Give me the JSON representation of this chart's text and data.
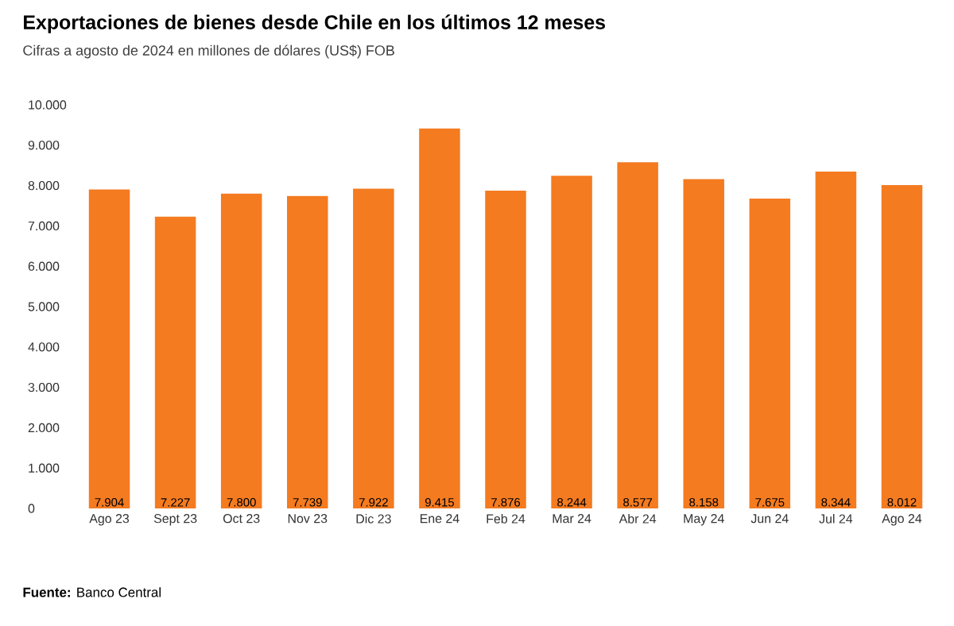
{
  "chart_data": {
    "type": "bar",
    "title": "Exportaciones de bienes desde Chile en los últimos 12 meses",
    "subtitle": "Cifras a agosto de 2024 en millones de dólares (US$) FOB",
    "categories": [
      "Ago 23",
      "Sept 23",
      "Oct 23",
      "Nov 23",
      "Dic 23",
      "Ene 24",
      "Feb 24",
      "Mar 24",
      "Abr 24",
      "May 24",
      "Jun 24",
      "Jul 24",
      "Ago 24"
    ],
    "values": [
      7904,
      7227,
      7800,
      7739,
      7922,
      9415,
      7876,
      8244,
      8577,
      8158,
      7675,
      8344,
      8012
    ],
    "value_labels": [
      "7.904",
      "7.227",
      "7.800",
      "7.739",
      "7.922",
      "9.415",
      "7.876",
      "8.244",
      "8.577",
      "8.158",
      "7.675",
      "8.344",
      "8.012"
    ],
    "color": "#f47b20",
    "ylim": [
      0,
      10000
    ],
    "yticks": [
      0,
      {
        "value": 1000,
        "label": "1.000"
      },
      {
        "value": 2000,
        "label": "2.000"
      },
      {
        "value": 3000,
        "label": "3.000"
      },
      {
        "value": 4000,
        "label": "4.000"
      },
      {
        "value": 5000,
        "label": "5.000"
      },
      {
        "value": 6000,
        "label": "6.000"
      },
      {
        "value": 7000,
        "label": "7.000"
      },
      {
        "value": 8000,
        "label": "8.000"
      },
      {
        "value": 9000,
        "label": "9.000"
      },
      {
        "value": 10000,
        "label": "10.000"
      }
    ],
    "annotations": [
      "**Fuente:** Banco Central"
    ]
  }
}
